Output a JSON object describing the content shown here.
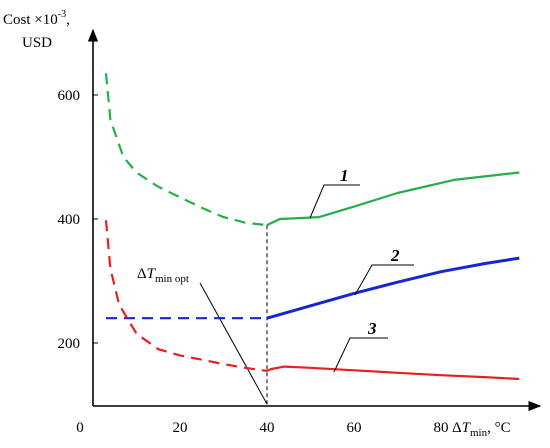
{
  "chart_data": {
    "type": "line",
    "title": "",
    "xlabel": {
      "prefix": "Δ",
      "symbol": "T",
      "sub": "min",
      "unit": ", °C"
    },
    "ylabel": {
      "line1": "Cost ×10",
      "sup": "-3",
      "line1_end": ",",
      "line2": "USD"
    },
    "xlim": [
      0,
      100
    ],
    "ylim": [
      100,
      700
    ],
    "x_ticks": [
      "0",
      "20",
      "40",
      "60",
      "80"
    ],
    "y_ticks": [
      "200",
      "400",
      "600"
    ],
    "grid": false,
    "annotation": {
      "prefix": "Δ",
      "symbol": "T",
      "sub": "min opt",
      "x": 40
    },
    "colors": {
      "green": "#22b04b",
      "blue": "#1726d1",
      "red": "#e62020",
      "axis": "#000000"
    },
    "series": [
      {
        "label": "1",
        "color": "#22b04b",
        "dashed": [
          [
            3,
            635
          ],
          [
            4,
            560
          ],
          [
            7,
            500
          ],
          [
            10,
            475
          ],
          [
            15,
            452
          ],
          [
            20,
            435
          ],
          [
            25,
            418
          ],
          [
            30,
            403
          ],
          [
            35,
            394
          ],
          [
            40,
            390
          ]
        ],
        "solid": [
          [
            40,
            390
          ],
          [
            40.5,
            392
          ],
          [
            43,
            400
          ],
          [
            52,
            403
          ],
          [
            60,
            420
          ],
          [
            70,
            442
          ],
          [
            83,
            463
          ],
          [
            98,
            475
          ]
        ]
      },
      {
        "label": "2",
        "color": "#1726d1",
        "dashed": [
          [
            3,
            240
          ],
          [
            40,
            240
          ]
        ],
        "solid": [
          [
            40,
            240
          ],
          [
            50,
            260
          ],
          [
            60,
            280
          ],
          [
            70,
            298
          ],
          [
            80,
            315
          ],
          [
            90,
            328
          ],
          [
            98,
            337
          ]
        ]
      },
      {
        "label": "3",
        "color": "#e62020",
        "dashed": [
          [
            3,
            398
          ],
          [
            4,
            320
          ],
          [
            6,
            262
          ],
          [
            10,
            215
          ],
          [
            15,
            190
          ],
          [
            20,
            180
          ],
          [
            25,
            173
          ],
          [
            30,
            166
          ],
          [
            35,
            160
          ],
          [
            40,
            155
          ]
        ],
        "solid": [
          [
            40,
            155
          ],
          [
            41,
            158
          ],
          [
            44,
            162
          ],
          [
            50,
            160
          ],
          [
            60,
            156
          ],
          [
            70,
            152
          ],
          [
            80,
            148
          ],
          [
            90,
            145
          ],
          [
            98,
            142
          ]
        ]
      }
    ]
  }
}
